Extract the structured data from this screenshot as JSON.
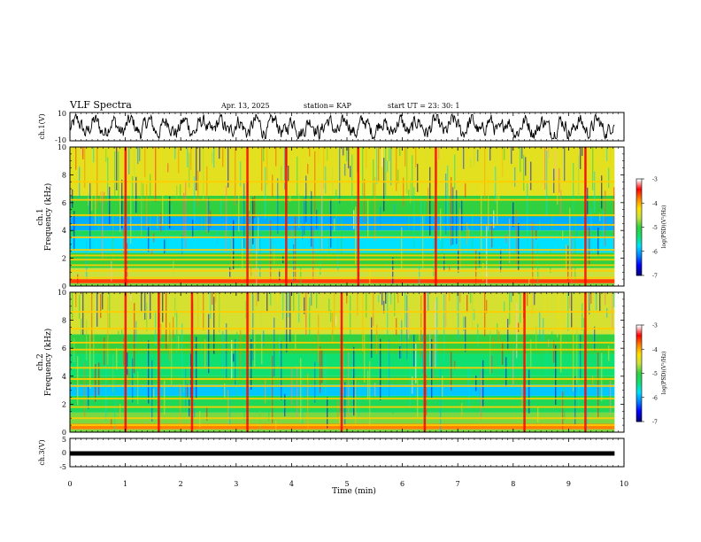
{
  "header": {
    "title": "VLF Spectra",
    "date": "Apr. 13, 2025",
    "station": "station= KAP",
    "start": "start  UT =   23: 30: 1"
  },
  "colors": {
    "colormap": [
      "#000080",
      "#0000ff",
      "#0080ff",
      "#00e0ff",
      "#10e070",
      "#30d040",
      "#c8e040",
      "#ffe000",
      "#ff8000",
      "#ff0000",
      "#ffffff"
    ],
    "trace": "#000000"
  },
  "chart_data": [
    {
      "type": "line",
      "name": "ch1-waveform",
      "ylabel": "ch.1(V)",
      "ylim": [
        -10,
        10
      ],
      "yticks": [
        "10",
        "-10"
      ],
      "xlim": [
        0,
        10
      ],
      "grid": false
    },
    {
      "type": "heatmap",
      "name": "ch1-spectrogram",
      "ylabel_line1": "ch.1",
      "ylabel_line2": "Frequency (kHz)",
      "ylim": [
        0,
        10
      ],
      "yticks": [
        "0",
        "2",
        "4",
        "6",
        "8",
        "10"
      ],
      "xlim": [
        0,
        10
      ],
      "data_extent_x": [
        0,
        9.83
      ],
      "colorbar": {
        "label": "log(PSD)(V²/Hz)",
        "range": [
          -7,
          -3
        ],
        "ticks": [
          "-3",
          "-4",
          "-5",
          "-6",
          "-7"
        ]
      },
      "bands_khz": [
        {
          "f": [
            0.2,
            0.5
          ],
          "level": -3.6
        },
        {
          "f": [
            0.5,
            1.3
          ],
          "level": -4.6
        },
        {
          "f": [
            1.3,
            2.4
          ],
          "level": -5.0
        },
        {
          "f": [
            2.4,
            3.6
          ],
          "level": -5.8
        },
        {
          "f": [
            3.6,
            4.0
          ],
          "level": -5.2
        },
        {
          "f": [
            4.0,
            5.0
          ],
          "level": -6.0
        },
        {
          "f": [
            5.0,
            6.5
          ],
          "level": -5.0
        },
        {
          "f": [
            6.5,
            10.0
          ],
          "level": -4.4
        }
      ],
      "tonal_lines_khz": [
        0.6,
        1.1,
        1.5,
        1.9,
        2.2,
        2.6,
        3.5,
        4.4,
        5.1,
        6.2,
        7.5
      ],
      "impulses_min": [
        1.0,
        3.2,
        3.9,
        5.2,
        6.6,
        9.3
      ]
    },
    {
      "type": "heatmap",
      "name": "ch2-spectrogram",
      "ylabel_line1": "ch.2",
      "ylabel_line2": "Frequency (kHz)",
      "ylim": [
        0,
        10
      ],
      "yticks": [
        "0",
        "2",
        "4",
        "6",
        "8",
        "10"
      ],
      "xlim": [
        0,
        10
      ],
      "data_extent_x": [
        0,
        9.83
      ],
      "colorbar": {
        "label": "log(PSD)(V²/Hz)",
        "range": [
          -7,
          -3
        ],
        "ticks": [
          "-3",
          "-4",
          "-5",
          "-6",
          "-7"
        ]
      },
      "bands_khz": [
        {
          "f": [
            0.2,
            0.6
          ],
          "level": -3.8
        },
        {
          "f": [
            0.6,
            1.4
          ],
          "level": -4.8
        },
        {
          "f": [
            1.4,
            2.6
          ],
          "level": -5.2
        },
        {
          "f": [
            2.6,
            3.4
          ],
          "level": -5.9
        },
        {
          "f": [
            3.4,
            4.0
          ],
          "level": -5.0
        },
        {
          "f": [
            4.0,
            5.6
          ],
          "level": -5.4
        },
        {
          "f": [
            5.6,
            7.0
          ],
          "level": -5.0
        },
        {
          "f": [
            7.0,
            10.0
          ],
          "level": -4.5
        }
      ],
      "tonal_lines_khz": [
        0.5,
        1.0,
        1.8,
        2.4,
        3.3,
        3.8,
        4.6,
        5.9,
        6.4,
        7.4,
        8.6
      ],
      "impulses_min": [
        1.0,
        1.6,
        2.2,
        3.2,
        4.9,
        6.4,
        8.2,
        9.3
      ]
    },
    {
      "type": "line",
      "name": "ch3-waveform",
      "ylabel": "ch.3(V)",
      "ylim": [
        -5,
        5
      ],
      "yticks": [
        "5",
        "0",
        "-5"
      ],
      "xlim": [
        0,
        10
      ],
      "xticks": [
        "0",
        "1",
        "2",
        "3",
        "4",
        "5",
        "6",
        "7",
        "8",
        "9",
        "10"
      ],
      "xlabel": "Time  (min)",
      "level": -0.3,
      "grid": false
    }
  ]
}
